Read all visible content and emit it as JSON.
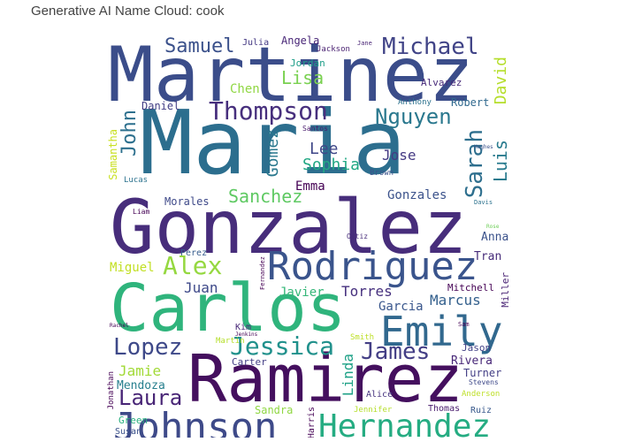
{
  "title": "Generative AI Name Cloud: cook",
  "words": [
    {
      "text": "Martinez",
      "color": "#3b4d8a"
    },
    {
      "text": "Maria",
      "color": "#2c6e8e"
    },
    {
      "text": "Gonzalez",
      "color": "#472d7b"
    },
    {
      "text": "Carlos",
      "color": "#2fb47c"
    },
    {
      "text": "Ramirez",
      "color": "#440f5e"
    },
    {
      "text": "Johnson",
      "color": "#3e4a89"
    },
    {
      "text": "Hernandez",
      "color": "#25ac82"
    },
    {
      "text": "Rodriguez",
      "color": "#3a548c"
    },
    {
      "text": "Emily",
      "color": "#31688e"
    },
    {
      "text": "Thompson",
      "color": "#472f7d"
    },
    {
      "text": "Nguyen",
      "color": "#2a788e"
    },
    {
      "text": "Michael",
      "color": "#414487"
    },
    {
      "text": "Samuel",
      "color": "#3b518b"
    },
    {
      "text": "Jessica",
      "color": "#21918c"
    },
    {
      "text": "Lopez",
      "color": "#3e4989"
    },
    {
      "text": "Alex",
      "color": "#95d840"
    },
    {
      "text": "Laura",
      "color": "#482576"
    },
    {
      "text": "James",
      "color": "#433e85"
    },
    {
      "text": "Sarah",
      "color": "#2e6f8e"
    },
    {
      "text": "Luis",
      "color": "#297b8e"
    },
    {
      "text": "David",
      "color": "#b5de2b"
    },
    {
      "text": "John",
      "color": "#2d708e"
    },
    {
      "text": "Sanchez",
      "color": "#5ec962"
    },
    {
      "text": "Lisa",
      "color": "#7ad151"
    },
    {
      "text": "Chen",
      "color": "#90d743"
    },
    {
      "text": "Gomez",
      "color": "#2a788e"
    },
    {
      "text": "Lee",
      "color": "#3f4788"
    },
    {
      "text": "Sophia",
      "color": "#22a884"
    },
    {
      "text": "Jose",
      "color": "#443a83"
    },
    {
      "text": "Emma",
      "color": "#440154"
    },
    {
      "text": "Gonzales",
      "color": "#3b528b"
    },
    {
      "text": "Tran",
      "color": "#472c7a"
    },
    {
      "text": "Anna",
      "color": "#3b528b"
    },
    {
      "text": "Juan",
      "color": "#3e4989"
    },
    {
      "text": "Javier",
      "color": "#35b779"
    },
    {
      "text": "Torres",
      "color": "#46307e"
    },
    {
      "text": "Garcia",
      "color": "#39568c"
    },
    {
      "text": "Marcus",
      "color": "#34608d"
    },
    {
      "text": "Mitchell",
      "color": "#440154"
    },
    {
      "text": "Miller",
      "color": "#482173"
    },
    {
      "text": "Miguel",
      "color": "#c2df23"
    },
    {
      "text": "Perez",
      "color": "#365c8d"
    },
    {
      "text": "Morales",
      "color": "#3e4989"
    },
    {
      "text": "Daniel",
      "color": "#433e85"
    },
    {
      "text": "Robert",
      "color": "#30698e"
    },
    {
      "text": "Anthony",
      "color": "#2c728e"
    },
    {
      "text": "Alvarez",
      "color": "#472a7a"
    },
    {
      "text": "Jordan",
      "color": "#1f9e89"
    },
    {
      "text": "Angela",
      "color": "#482677"
    },
    {
      "text": "Julia",
      "color": "#443983"
    },
    {
      "text": "Jackson",
      "color": "#481f70"
    },
    {
      "text": "Jane",
      "color": "#482475"
    },
    {
      "text": "Samantha",
      "color": "#c8e020"
    },
    {
      "text": "Lucas",
      "color": "#2c728e"
    },
    {
      "text": "Liam",
      "color": "#440154"
    },
    {
      "text": "Brown",
      "color": "#3b528b"
    },
    {
      "text": "Santos",
      "color": "#481b6d"
    },
    {
      "text": "Jamie",
      "color": "#a2da37"
    },
    {
      "text": "Mendoza",
      "color": "#277f8e"
    },
    {
      "text": "Jonathan",
      "color": "#440154"
    },
    {
      "text": "Green",
      "color": "#29af7f"
    },
    {
      "text": "Susan",
      "color": "#3b528b"
    },
    {
      "text": "Carter",
      "color": "#433e85"
    },
    {
      "text": "Kim",
      "color": "#482878"
    },
    {
      "text": "Martin",
      "color": "#b5de2b"
    },
    {
      "text": "Smith",
      "color": "#bddf26"
    },
    {
      "text": "Jason",
      "color": "#424086"
    },
    {
      "text": "Rivera",
      "color": "#482878"
    },
    {
      "text": "Turner",
      "color": "#433e85"
    },
    {
      "text": "Stevens",
      "color": "#3e4989"
    },
    {
      "text": "Anderson",
      "color": "#bddf26"
    },
    {
      "text": "Thomas",
      "color": "#481b6d"
    },
    {
      "text": "Ruiz",
      "color": "#38598c"
    },
    {
      "text": "Jennifer",
      "color": "#b5de2b"
    },
    {
      "text": "Sandra",
      "color": "#90d743"
    },
    {
      "text": "Harris",
      "color": "#440154"
    },
    {
      "text": "Linda",
      "color": "#1fa187"
    },
    {
      "text": "Alice",
      "color": "#46337f"
    },
    {
      "text": "Ortiz",
      "color": "#472c7a"
    },
    {
      "text": "Fernandez",
      "color": "#440154"
    },
    {
      "text": "Hughes",
      "color": "#3b528b"
    },
    {
      "text": "Davis",
      "color": "#2c728e"
    },
    {
      "text": "Rose",
      "color": "#6ece58"
    },
    {
      "text": "Sam",
      "color": "#440154"
    },
    {
      "text": "Rachel",
      "color": "#440154"
    },
    {
      "text": "Jenkins",
      "color": "#440154"
    }
  ]
}
